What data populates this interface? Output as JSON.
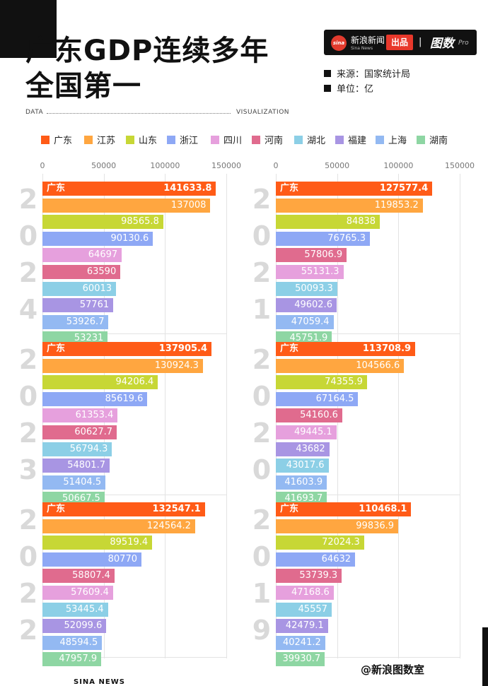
{
  "title": {
    "line1": "广东GDP连续多年",
    "line2": "全国第一"
  },
  "brand": {
    "logo": "sina",
    "name": "新浪新闻",
    "sub": "Sina News",
    "tag": "出品",
    "sep": "|",
    "product": "图数",
    "pro": "Pro"
  },
  "meta": {
    "source": "来源：国家统计局",
    "unit": "单位：亿"
  },
  "ruler": {
    "left": "DATA",
    "right": "VISUALIZATION"
  },
  "footer": {
    "left": "SINA NEWS",
    "credit": "@新浪图数室"
  },
  "colors": {
    "广东": "#ff5b17",
    "江苏": "#ffa640",
    "山东": "#c7d735",
    "浙江": "#8ea8f5",
    "四川": "#e6a0dd",
    "河南": "#e06b8e",
    "湖北": "#8ccfe6",
    "福建": "#a895e3",
    "上海": "#93b9f2",
    "湖南": "#8ed6a3"
  },
  "chart_data": {
    "type": "bar",
    "legend": [
      "广东",
      "江苏",
      "山东",
      "浙江",
      "四川",
      "河南",
      "湖北",
      "福建",
      "上海",
      "湖南"
    ],
    "xticks": [
      "0",
      "50000",
      "100000",
      "150000"
    ],
    "xlim": [
      0,
      150000
    ],
    "panels": [
      {
        "year": "2024",
        "bars": [
          {
            "province": "广东",
            "value": 141633.8,
            "text": "141633.8"
          },
          {
            "province": "江苏",
            "value": 137008,
            "text": "137008"
          },
          {
            "province": "山东",
            "value": 98565.8,
            "text": "98565.8"
          },
          {
            "province": "浙江",
            "value": 90130.6,
            "text": "90130.6"
          },
          {
            "province": "四川",
            "value": 64697,
            "text": "64697"
          },
          {
            "province": "河南",
            "value": 63590,
            "text": "63590"
          },
          {
            "province": "湖北",
            "value": 60013,
            "text": "60013"
          },
          {
            "province": "福建",
            "value": 57761,
            "text": "57761"
          },
          {
            "province": "上海",
            "value": 53926.7,
            "text": "53926.7"
          },
          {
            "province": "湖南",
            "value": 53231,
            "text": "53231"
          }
        ]
      },
      {
        "year": "2021",
        "bars": [
          {
            "province": "广东",
            "value": 127577.4,
            "text": "127577.4"
          },
          {
            "province": "江苏",
            "value": 119853.2,
            "text": "119853.2"
          },
          {
            "province": "山东",
            "value": 84838,
            "text": "84838"
          },
          {
            "province": "浙江",
            "value": 76765.3,
            "text": "76765.3"
          },
          {
            "province": "河南",
            "value": 57806.9,
            "text": "57806.9"
          },
          {
            "province": "四川",
            "value": 55131.3,
            "text": "55131.3"
          },
          {
            "province": "湖北",
            "value": 50093.3,
            "text": "50093.3"
          },
          {
            "province": "福建",
            "value": 49602.6,
            "text": "49602.6"
          },
          {
            "province": "上海",
            "value": 47059.4,
            "text": "47059.4"
          },
          {
            "province": "湖南",
            "value": 45751.9,
            "text": "45751.9"
          }
        ]
      },
      {
        "year": "2023",
        "bars": [
          {
            "province": "广东",
            "value": 137905.4,
            "text": "137905.4"
          },
          {
            "province": "江苏",
            "value": 130924.3,
            "text": "130924.3"
          },
          {
            "province": "山东",
            "value": 94206.4,
            "text": "94206.4"
          },
          {
            "province": "浙江",
            "value": 85619.6,
            "text": "85619.6"
          },
          {
            "province": "四川",
            "value": 61353.4,
            "text": "61353.4"
          },
          {
            "province": "河南",
            "value": 60627.7,
            "text": "60627.7"
          },
          {
            "province": "湖北",
            "value": 56794.3,
            "text": "56794.3"
          },
          {
            "province": "福建",
            "value": 54801.7,
            "text": "54801.7"
          },
          {
            "province": "上海",
            "value": 51404.5,
            "text": "51404.5"
          },
          {
            "province": "湖南",
            "value": 50667.5,
            "text": "50667.5"
          }
        ]
      },
      {
        "year": "2020",
        "bars": [
          {
            "province": "广东",
            "value": 113708.9,
            "text": "113708.9"
          },
          {
            "province": "江苏",
            "value": 104566.6,
            "text": "104566.6"
          },
          {
            "province": "山东",
            "value": 74355.9,
            "text": "74355.9"
          },
          {
            "province": "浙江",
            "value": 67164.5,
            "text": "67164.5"
          },
          {
            "province": "河南",
            "value": 54160.6,
            "text": "54160.6"
          },
          {
            "province": "四川",
            "value": 49445.1,
            "text": "49445.1"
          },
          {
            "province": "福建",
            "value": 43682,
            "text": "43682"
          },
          {
            "province": "湖北",
            "value": 43017.6,
            "text": "43017.6"
          },
          {
            "province": "上海",
            "value": 41603.9,
            "text": "41603.9"
          },
          {
            "province": "湖南",
            "value": 41693.7,
            "text": "41693.7"
          }
        ]
      },
      {
        "year": "2022",
        "bars": [
          {
            "province": "广东",
            "value": 132547.1,
            "text": "132547.1"
          },
          {
            "province": "江苏",
            "value": 124564.2,
            "text": "124564.2"
          },
          {
            "province": "山东",
            "value": 89519.4,
            "text": "89519.4"
          },
          {
            "province": "浙江",
            "value": 80770,
            "text": "80770"
          },
          {
            "province": "河南",
            "value": 58807.4,
            "text": "58807.4"
          },
          {
            "province": "四川",
            "value": 57609.4,
            "text": "57609.4"
          },
          {
            "province": "湖北",
            "value": 53445.4,
            "text": "53445.4"
          },
          {
            "province": "福建",
            "value": 52099.6,
            "text": "52099.6"
          },
          {
            "province": "上海",
            "value": 48594.5,
            "text": "48594.5"
          },
          {
            "province": "湖南",
            "value": 47957.9,
            "text": "47957.9"
          }
        ]
      },
      {
        "year": "2019",
        "bars": [
          {
            "province": "广东",
            "value": 110468.1,
            "text": "110468.1"
          },
          {
            "province": "江苏",
            "value": 99836.9,
            "text": "99836.9"
          },
          {
            "province": "山东",
            "value": 72024.3,
            "text": "72024.3"
          },
          {
            "province": "浙江",
            "value": 64632,
            "text": "64632"
          },
          {
            "province": "河南",
            "value": 53739.3,
            "text": "53739.3"
          },
          {
            "province": "四川",
            "value": 47168.6,
            "text": "47168.6"
          },
          {
            "province": "湖北",
            "value": 45557,
            "text": "45557"
          },
          {
            "province": "福建",
            "value": 42479.1,
            "text": "42479.1"
          },
          {
            "province": "上海",
            "value": 40241.2,
            "text": "40241.2"
          },
          {
            "province": "湖南",
            "value": 39930.7,
            "text": "39930.7"
          }
        ]
      }
    ]
  }
}
